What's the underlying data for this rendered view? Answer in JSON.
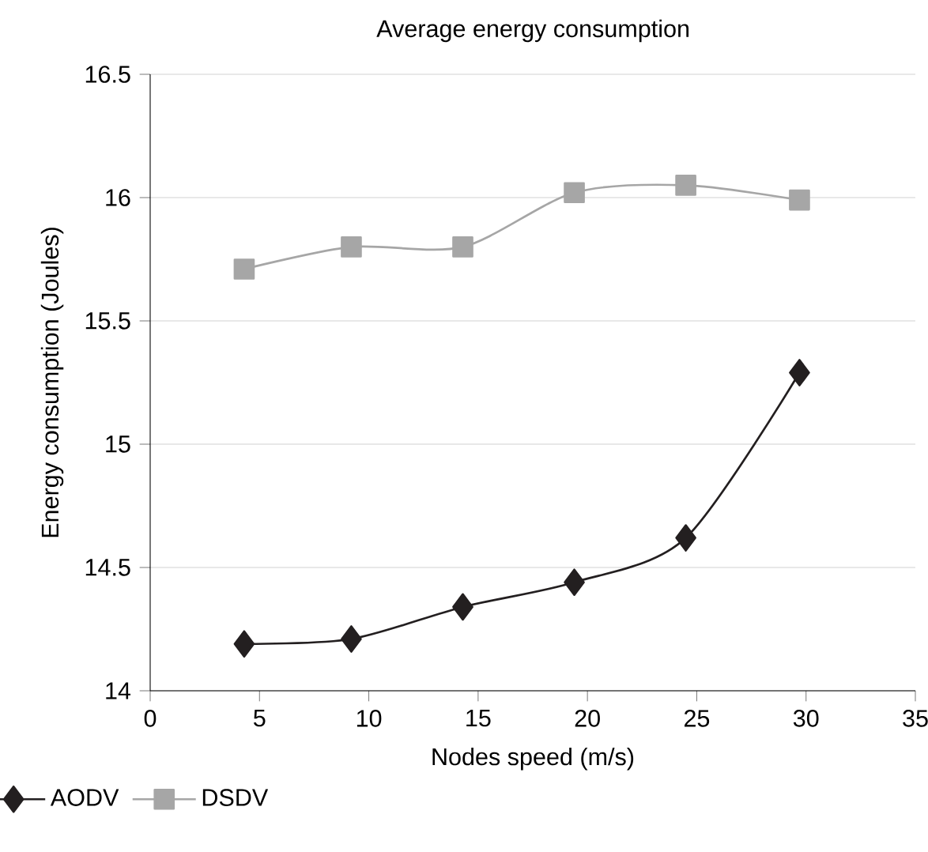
{
  "chart_data": {
    "type": "line",
    "title": "Average energy consumption",
    "xlabel": "Nodes speed (m/s)",
    "ylabel": "Energy consumption (Joules)",
    "x": [
      4.3,
      9.2,
      14.3,
      19.4,
      24.5,
      29.7
    ],
    "series": [
      {
        "name": "AODV",
        "color": "#231f20",
        "marker": "diamond",
        "values": [
          14.19,
          14.21,
          14.34,
          14.44,
          14.62,
          15.29
        ]
      },
      {
        "name": "DSDV",
        "color": "#a6a6a6",
        "marker": "square",
        "values": [
          15.71,
          15.8,
          15.8,
          16.02,
          16.05,
          15.99
        ]
      }
    ],
    "xlim": [
      0,
      35
    ],
    "xticks": [
      0,
      5,
      10,
      15,
      20,
      25,
      30,
      35
    ],
    "ylim": [
      14,
      16.5
    ],
    "yticks": [
      14,
      14.5,
      15,
      15.5,
      16,
      16.5
    ],
    "grid": "y",
    "legend": "bottom left",
    "line_style": "solid"
  }
}
